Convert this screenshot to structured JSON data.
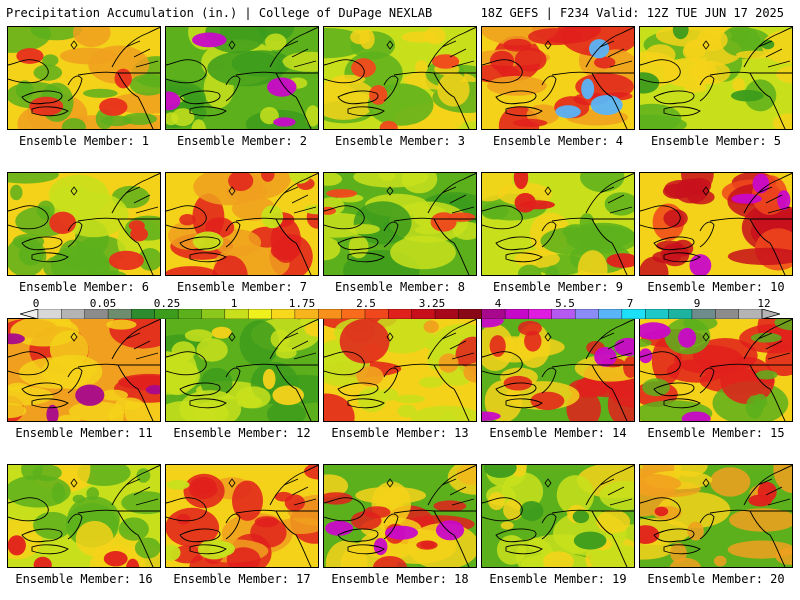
{
  "header": {
    "left": "Precipitation Accumulation (in.) | College of DuPage NEXLAB",
    "right": "18Z GEFS | F234 Valid: 12Z TUE JUN 17 2025"
  },
  "colorbar": {
    "labels": [
      "0",
      "0.05",
      "0.25",
      "1",
      "1.75",
      "2.5",
      "3.25",
      "4",
      "5.5",
      "7",
      "9",
      "12"
    ],
    "colors": [
      "#d8d8d8",
      "#b4b4b4",
      "#8c8c8c",
      "#6e8c6e",
      "#2e8b2e",
      "#3c9c1c",
      "#5cb01c",
      "#8cc81c",
      "#c8e01c",
      "#f0f01c",
      "#f8d81c",
      "#f8b41c",
      "#f8901c",
      "#f86c1c",
      "#f0481c",
      "#e0201c",
      "#c8101c",
      "#a8081c",
      "#880818",
      "#a8088c",
      "#c808c8",
      "#e01ce0",
      "#b45af0",
      "#8c8cf8",
      "#5ab4f8",
      "#1ce0f8",
      "#1cc8c8",
      "#1cb4a0",
      "#6e8c8c",
      "#8c8c8c",
      "#b4b4b4"
    ]
  },
  "members": [
    {
      "label": "Ensemble Member: 1",
      "palette": [
        "#f4d21a",
        "#f0a01e",
        "#5cb01c",
        "#e8301c"
      ]
    },
    {
      "label": "Ensemble Member: 2",
      "palette": [
        "#5cb01c",
        "#3c9c1c",
        "#c8e01c",
        "#c808c8"
      ]
    },
    {
      "label": "Ensemble Member: 3",
      "palette": [
        "#c8e01c",
        "#5cb01c",
        "#f4d21a",
        "#f0481c"
      ]
    },
    {
      "label": "Ensemble Member: 4",
      "palette": [
        "#f4d21a",
        "#f0a01e",
        "#e0201c",
        "#5ab4f8"
      ]
    },
    {
      "label": "Ensemble Member: 5",
      "palette": [
        "#c8e01c",
        "#5cb01c",
        "#f4d21a",
        "#3c9c1c"
      ]
    },
    {
      "label": "Ensemble Member: 6",
      "palette": [
        "#f4d21a",
        "#c8e01c",
        "#5cb01c",
        "#e8301c"
      ]
    },
    {
      "label": "Ensemble Member: 7",
      "palette": [
        "#f4d21a",
        "#f0a01e",
        "#e0201c",
        "#c8e01c"
      ]
    },
    {
      "label": "Ensemble Member: 8",
      "palette": [
        "#5cb01c",
        "#3c9c1c",
        "#c8e01c",
        "#f0481c"
      ]
    },
    {
      "label": "Ensemble Member: 9",
      "palette": [
        "#c8e01c",
        "#f4d21a",
        "#5cb01c",
        "#e0201c"
      ]
    },
    {
      "label": "Ensemble Member: 10",
      "palette": [
        "#f4d21a",
        "#f0481c",
        "#c8101c",
        "#c808c8"
      ]
    },
    {
      "label": "Ensemble Member: 11",
      "palette": [
        "#f0a01e",
        "#e0201c",
        "#f4d21a",
        "#a8088c"
      ]
    },
    {
      "label": "Ensemble Member: 12",
      "palette": [
        "#5cb01c",
        "#3c9c1c",
        "#c8e01c",
        "#f4d21a"
      ]
    },
    {
      "label": "Ensemble Member: 13",
      "palette": [
        "#f4d21a",
        "#e0201c",
        "#c8e01c",
        "#f0a01e"
      ]
    },
    {
      "label": "Ensemble Member: 14",
      "palette": [
        "#5cb01c",
        "#f4d21a",
        "#e0201c",
        "#c808c8"
      ]
    },
    {
      "label": "Ensemble Member: 15",
      "palette": [
        "#f4d21a",
        "#e0201c",
        "#5cb01c",
        "#c808c8"
      ]
    },
    {
      "label": "Ensemble Member: 16",
      "palette": [
        "#c8e01c",
        "#f4d21a",
        "#5cb01c",
        "#e0201c"
      ]
    },
    {
      "label": "Ensemble Member: 17",
      "palette": [
        "#f4d21a",
        "#f0a01e",
        "#e0201c",
        "#c8e01c"
      ]
    },
    {
      "label": "Ensemble Member: 18",
      "palette": [
        "#5cb01c",
        "#f4d21a",
        "#e0201c",
        "#c808c8"
      ]
    },
    {
      "label": "Ensemble Member: 19",
      "palette": [
        "#5cb01c",
        "#c8e01c",
        "#f4d21a",
        "#3c9c1c"
      ]
    },
    {
      "label": "Ensemble Member: 20",
      "palette": [
        "#5cb01c",
        "#f4d21a",
        "#f0a01e",
        "#e0201c"
      ]
    }
  ]
}
